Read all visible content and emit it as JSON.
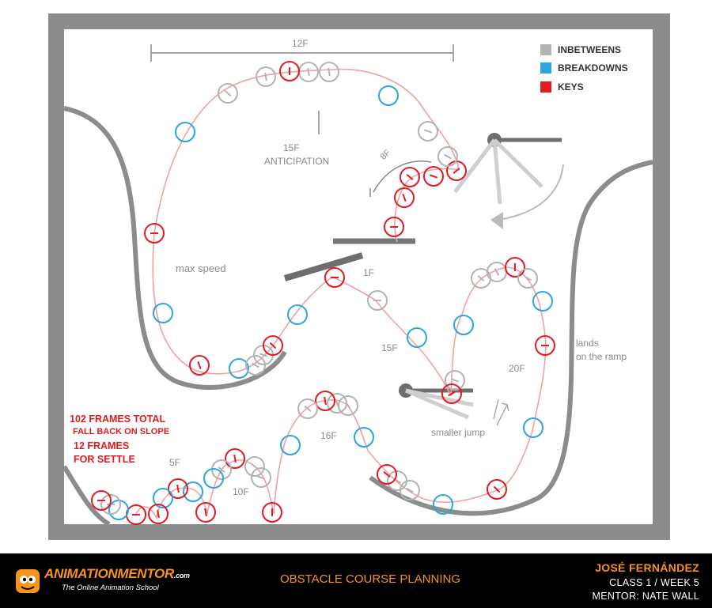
{
  "diagram": {
    "legend": [
      {
        "label": "INBETWEENS",
        "color": "#b3b3b3"
      },
      {
        "label": "BREAKDOWNS",
        "color": "#2aa7dc"
      },
      {
        "label": "KEYS",
        "color": "#e21b22"
      }
    ],
    "annotations": {
      "top_span": "12F",
      "anticipation_frames": "15F",
      "anticipation_label": "ANTICIPATION",
      "eight_f": "8F",
      "max_speed": "max speed",
      "one_f": "1F",
      "fifteen_f": "15F",
      "twenty_f": "20F",
      "lands": "lands",
      "on_the_ramp": "on the ramp",
      "sixteen_f": "16F",
      "smaller_jump": "smaller jump",
      "five_f": "5F",
      "ten_f": "10F"
    },
    "notes": {
      "total": "102 FRAMES TOTAL",
      "fall_back": "FALL BACK ON SLOPE",
      "twelve_frames": "12 FRAMES",
      "for_settle": "FOR SETTLE"
    }
  },
  "footer": {
    "logo_brand": "ANIMATIONMENTOR",
    "logo_com": ".com",
    "logo_tagline": "The Online Animation School",
    "title": "OBSTACLE COURSE PLANNING",
    "author": "JOSÉ FERNÁNDEZ",
    "class_week": "CLASS 1 / WEEK 5",
    "mentor": "MENTOR: NATE WALL"
  },
  "colors": {
    "frame_gray": "#8c8c8c",
    "inbetween": "#b3b3b3",
    "breakdown": "#2aa7dc",
    "key": "#e21b22",
    "path": "#f2a0a5",
    "footer_bg": "#000000",
    "footer_accent": "#f7941d"
  }
}
